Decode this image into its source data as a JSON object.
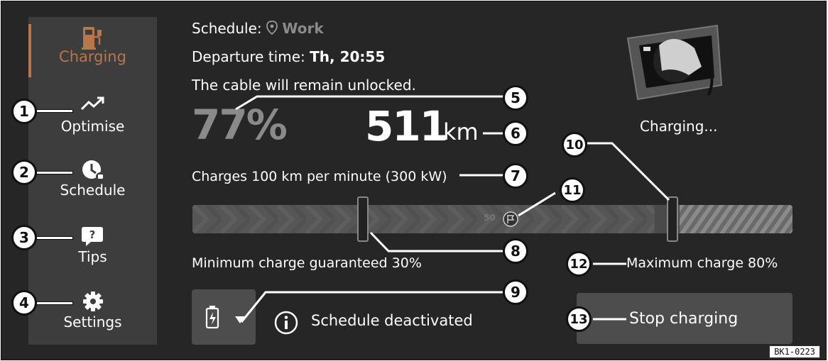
{
  "sidebar": {
    "items": [
      {
        "label": "Charging",
        "icon": "ev-charger-icon",
        "active": true
      },
      {
        "label": "Optimise",
        "icon": "trend-up-icon"
      },
      {
        "label": "Schedule",
        "icon": "clock-plug-icon"
      },
      {
        "label": "Tips",
        "icon": "question-bubble-icon"
      },
      {
        "label": "Settings",
        "icon": "gear-icon"
      }
    ],
    "accent_color": "#b8764a"
  },
  "main": {
    "schedule_label": "Schedule:",
    "schedule_value": "Work",
    "departure_label": "Departure time:",
    "departure_value": "Th, 20:55",
    "cable_text": "The cable will remain unlocked.",
    "battery_percent": "77%",
    "range_value": "511",
    "range_unit": "km",
    "charge_rate_text": "Charges 100 km per minute (300 kW)",
    "status_text": "Charging...",
    "slider": {
      "scale_mark": "50",
      "min_charge_fraction": 0.3,
      "max_charge_fraction": 0.8,
      "current_fraction": 0.77
    },
    "min_charge_text": "Minimum charge guaranteed 30%",
    "max_charge_text": "Maximum charge 80%",
    "schedule_status_text": "Schedule deactivated",
    "stop_button_label": "Stop charging"
  },
  "callouts": [
    "1",
    "2",
    "3",
    "4",
    "5",
    "6",
    "7",
    "8",
    "9",
    "10",
    "11",
    "12",
    "13"
  ],
  "figure_code": "BK1-0223"
}
